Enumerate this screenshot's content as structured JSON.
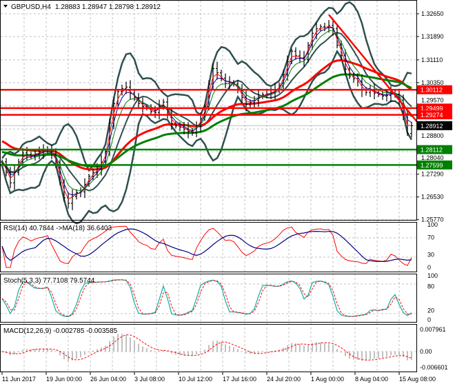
{
  "header": {
    "symbol": "GBPUSD,H4",
    "ohlc": "1.28883 1.28947 1.28798 1.28912"
  },
  "colors": {
    "bull_bear_bar": "#000000",
    "bollinger": "#2f4f4f",
    "ma_red": "#ff0000",
    "ma_green": "#008000",
    "ma_blue": "#00008b",
    "resistance": "#ff0000",
    "support": "#008000",
    "current_price_box": "#000000",
    "rsi": "#ff0000",
    "rsi_ma": "#000080",
    "stoch_main": "#20b2aa",
    "stoch_signal": "#ff0000",
    "macd_hist": "#c0c0c0",
    "macd_signal": "#ff0000"
  },
  "chart_data": [
    {
      "type": "line",
      "title": "GBPUSD,H4",
      "ylim": [
        1.2577,
        1.3265
      ],
      "y_ticks": [
        "1.32650",
        "1.31890",
        "1.31110",
        "1.30350",
        "1.29570",
        "1.28800",
        "1.28040",
        "1.27290",
        "1.26530",
        "1.25770"
      ],
      "x_ticks": [
        "11 Jun 2017",
        "19 Jun 00:00",
        "26 Jun 04:00",
        "3 Jul 08:00",
        "10 Jul 12:00",
        "17 Jul 16:00",
        "24 Jul 20:00",
        "1 Aug 00:00",
        "8 Aug 04:00",
        "15 Aug 08:00"
      ],
      "grid": true,
      "close": [
        1.277,
        1.2735,
        1.27,
        1.2735,
        1.277,
        1.28,
        1.2795,
        1.2788,
        1.2797,
        1.2803,
        1.2806,
        1.2812,
        1.2795,
        1.277,
        1.27,
        1.265,
        1.2632,
        1.2655,
        1.2668,
        1.267,
        1.2695,
        1.2722,
        1.2735,
        1.2748,
        1.277,
        1.2805,
        1.29,
        1.2965,
        1.3005,
        1.3015,
        1.302,
        1.3,
        1.2985,
        1.2965,
        1.2955,
        1.295,
        1.2938,
        1.2935,
        1.2955,
        1.297,
        1.293,
        1.2898,
        1.289,
        1.2886,
        1.288,
        1.2872,
        1.2868,
        1.289,
        1.2915,
        1.2955,
        1.303,
        1.3082,
        1.3068,
        1.305,
        1.3032,
        1.3036,
        1.303,
        1.3012,
        1.2985,
        1.2962,
        1.2968,
        1.2975,
        1.2988,
        1.2995,
        1.2998,
        1.3002,
        1.301,
        1.3025,
        1.3062,
        1.3105,
        1.314,
        1.3125,
        1.3118,
        1.3112,
        1.316,
        1.32,
        1.3215,
        1.3222,
        1.322,
        1.3226,
        1.3215,
        1.316,
        1.3125,
        1.308,
        1.3055,
        1.3048,
        1.304,
        1.301,
        1.3002,
        1.3012,
        1.3,
        1.2995,
        1.299,
        1.2992,
        1.3,
        1.2995,
        1.2975,
        1.293,
        1.2865,
        1.2891
      ],
      "current_price": "1.28912",
      "resistance_levels": [
        "1.30112",
        "1.29499",
        "1.29274"
      ],
      "support_levels": [
        "1.28112",
        "1.27599"
      ],
      "trendline": {
        "from_bar": 79,
        "from_price": 1.3262,
        "to_bar": 101,
        "to_price": 1.2893
      }
    },
    {
      "type": "line",
      "title": "RSI(14) 40.7844 ->MA(18) 36.6403",
      "ylim": [
        0,
        100
      ],
      "y_ticks": [
        "100",
        "70",
        "30",
        "0"
      ]
    },
    {
      "type": "line",
      "title": "Stoch(5,3,3) 77.7108 79.5744",
      "ylim": [
        0,
        100
      ],
      "y_ticks": [
        "100",
        "80",
        "20",
        "0"
      ]
    },
    {
      "type": "bar",
      "title": "MACD(12,26,9) -0.002785 -0.003585",
      "ylim": [
        -0.006601,
        0.007961
      ],
      "y_ticks": [
        "0.007961",
        "0.00",
        "-0.006601"
      ]
    }
  ]
}
